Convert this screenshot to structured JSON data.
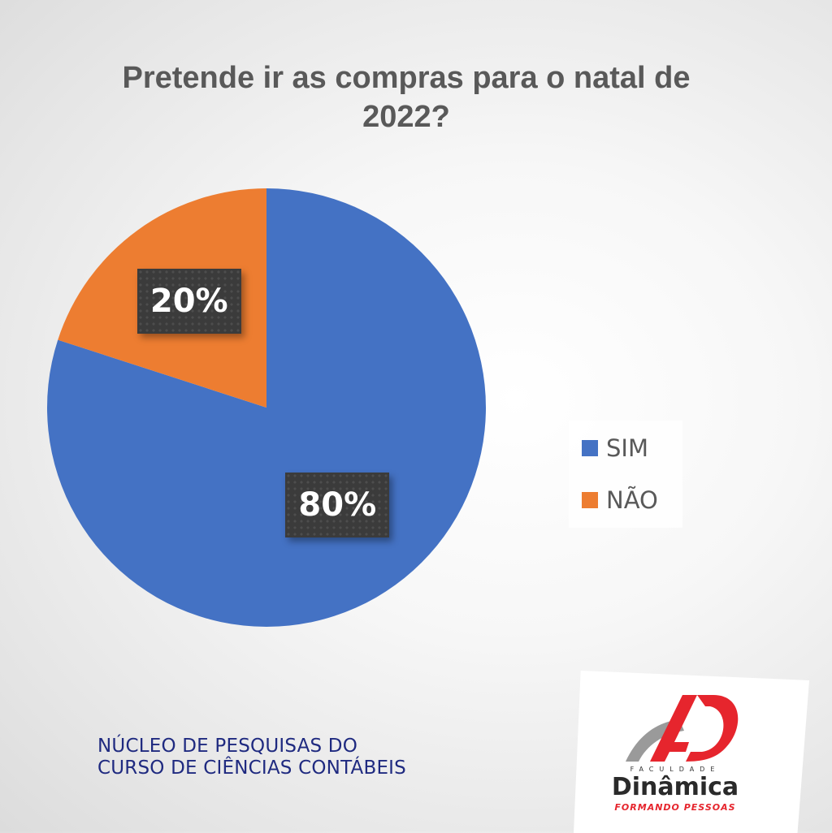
{
  "chart_data": {
    "type": "pie",
    "title": "Pretende ir as compras para o natal de 2022?",
    "categories": [
      "SIM",
      "NÃO"
    ],
    "values": [
      80,
      20
    ],
    "value_labels": [
      "80%",
      "20%"
    ],
    "colors": [
      "#4472c4",
      "#ed7d31"
    ],
    "start_angle_deg": 0,
    "direction": "clockwise",
    "legend_position": "right"
  },
  "footer": {
    "line1": "NÚCLEO DE PESQUISAS DO",
    "line2": "CURSO DE CIÊNCIAS CONTÁBEIS"
  },
  "logo": {
    "faculdade": "FACULDADE",
    "name": "Dinâmica",
    "tagline": "FORMANDO PESSOAS",
    "colors": {
      "red": "#e6252d",
      "grey": "#9a9a9a"
    }
  }
}
